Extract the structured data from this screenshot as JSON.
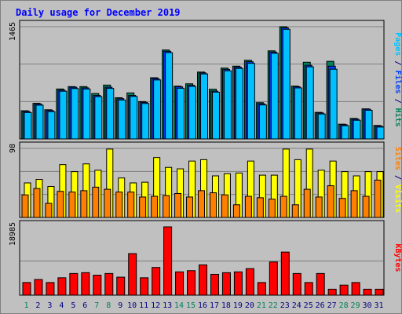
{
  "chart_data": [
    {
      "type": "bar",
      "title": "Daily usage for December 2019",
      "categories": [
        "1",
        "2",
        "3",
        "4",
        "5",
        "6",
        "7",
        "8",
        "9",
        "10",
        "11",
        "12",
        "13",
        "14",
        "15",
        "16",
        "17",
        "18",
        "19",
        "20",
        "21",
        "22",
        "23",
        "24",
        "25",
        "26",
        "27",
        "28",
        "29",
        "30",
        "31"
      ],
      "weekend_days": [
        "1",
        "7",
        "8",
        "14",
        "15",
        "21",
        "22",
        "28",
        "29"
      ],
      "panel": "top",
      "ylim": [
        0,
        1465
      ],
      "max_label": "1465",
      "ylabel_parts": [
        {
          "text": "Pages",
          "color": "#00c0ff"
        },
        {
          "text": " / ",
          "color": "#000080"
        },
        {
          "text": "Files",
          "color": "#0040ff"
        },
        {
          "text": " / ",
          "color": "#000080"
        },
        {
          "text": "Hits",
          "color": "#00805c"
        }
      ],
      "series": [
        {
          "name": "Hits",
          "color": "#00805c",
          "values": [
            368,
            465,
            381,
            652,
            683,
            683,
            593,
            703,
            538,
            601,
            488,
            799,
            1161,
            689,
            720,
            873,
            649,
            925,
            950,
            1027,
            474,
            1150,
            1465,
            689,
            1001,
            347,
            1013,
            193,
            268,
            393,
            176
          ]
        },
        {
          "name": "Files",
          "color": "#0040ff",
          "values": [
            359,
            456,
            372,
            637,
            675,
            667,
            569,
            675,
            525,
            568,
            477,
            788,
            1144,
            680,
            701,
            862,
            624,
            908,
            938,
            1008,
            459,
            1134,
            1450,
            681,
            961,
            339,
            950,
            186,
            258,
            388,
            167
          ]
        },
        {
          "name": "Pages",
          "color": "#00c0ff",
          "values": [
            345,
            441,
            356,
            623,
            658,
            652,
            552,
            660,
            508,
            555,
            463,
            770,
            1126,
            662,
            686,
            848,
            611,
            890,
            920,
            987,
            444,
            1118,
            1431,
            666,
            941,
            326,
            910,
            173,
            244,
            374,
            155
          ]
        }
      ]
    },
    {
      "type": "bar",
      "panel": "middle",
      "categories": [
        "1",
        "2",
        "3",
        "4",
        "5",
        "6",
        "7",
        "8",
        "9",
        "10",
        "11",
        "12",
        "13",
        "14",
        "15",
        "16",
        "17",
        "18",
        "19",
        "20",
        "21",
        "22",
        "23",
        "24",
        "25",
        "26",
        "27",
        "28",
        "29",
        "30",
        "31"
      ],
      "ylim": [
        0,
        98
      ],
      "max_label": "98",
      "ylabel_parts": [
        {
          "text": "Sites",
          "color": "#ff8000"
        },
        {
          "text": " / ",
          "color": "#000080"
        },
        {
          "text": "Visits",
          "color": "#ffff00"
        }
      ],
      "series": [
        {
          "name": "Visits",
          "color": "#ffff00",
          "values": [
            49,
            54,
            44,
            75,
            65,
            76,
            67,
            97,
            56,
            49,
            50,
            85,
            71,
            69,
            80,
            82,
            59,
            62,
            63,
            80,
            60,
            60,
            97,
            82,
            97,
            67,
            80,
            65,
            59,
            65,
            65
          ]
        },
        {
          "name": "Sites",
          "color": "#ff8000",
          "values": [
            32,
            41,
            20,
            37,
            36,
            38,
            43,
            40,
            36,
            36,
            29,
            30,
            31,
            34,
            29,
            38,
            35,
            32,
            18,
            30,
            28,
            26,
            30,
            18,
            40,
            29,
            45,
            27,
            38,
            30,
            53
          ]
        }
      ]
    },
    {
      "type": "bar",
      "panel": "bottom",
      "categories": [
        "1",
        "2",
        "3",
        "4",
        "5",
        "6",
        "7",
        "8",
        "9",
        "10",
        "11",
        "12",
        "13",
        "14",
        "15",
        "16",
        "17",
        "18",
        "19",
        "20",
        "21",
        "22",
        "23",
        "24",
        "25",
        "26",
        "27",
        "28",
        "29",
        "30",
        "31"
      ],
      "ylim": [
        0,
        18985
      ],
      "max_label": "18985",
      "ylabel_parts": [
        {
          "text": "KBytes",
          "color": "#ff0000"
        }
      ],
      "series": [
        {
          "name": "KBytes",
          "color": "#ff0000",
          "values": [
            3514,
            4355,
            3514,
            4831,
            6028,
            6254,
            5562,
            6028,
            5002,
            11553,
            4831,
            7708,
            18985,
            6475,
            6813,
            8422,
            5786,
            6254,
            6475,
            7374,
            3514,
            9231,
            11975,
            6028,
            3514,
            6028,
            1658,
            2794,
            3514,
            1658,
            1658
          ]
        }
      ]
    }
  ],
  "colors": {
    "background": "#c0c0c0",
    "title": "#0000ff",
    "axis_label": "#000080",
    "weekend_label": "#00805c",
    "gridline": "#7f7f7f",
    "bar_outline": "#000000"
  }
}
